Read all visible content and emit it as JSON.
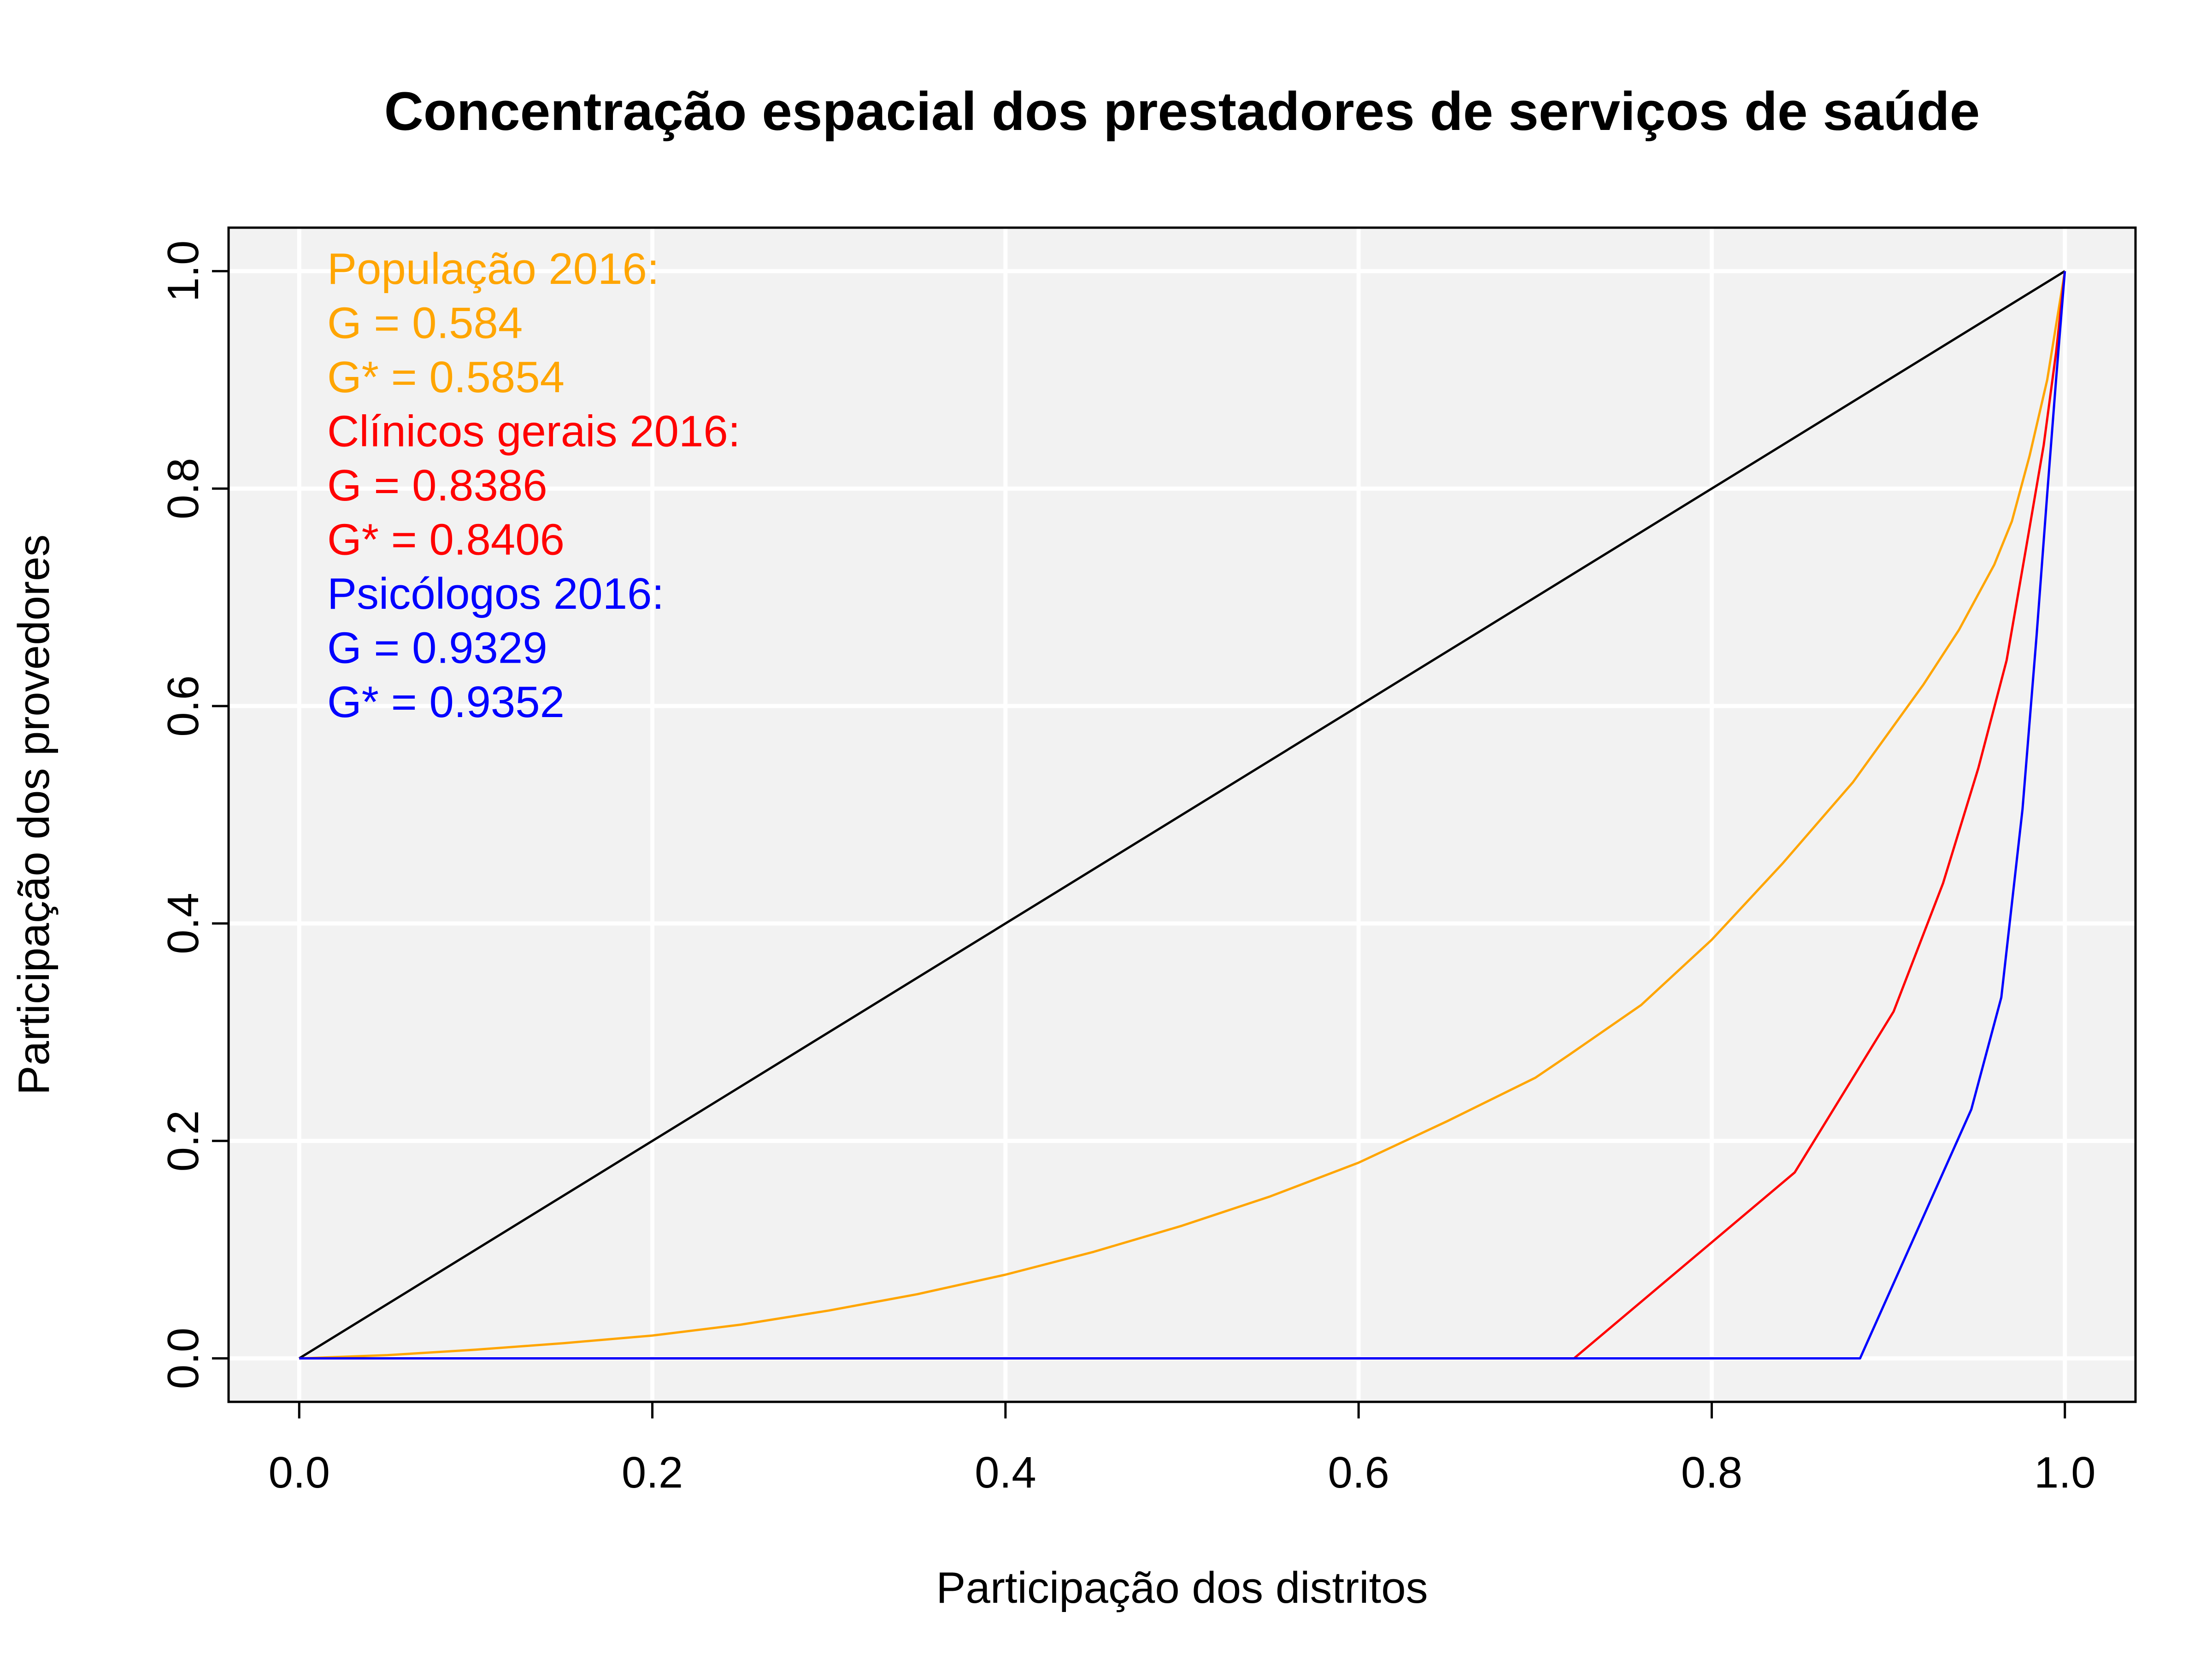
{
  "chart_data": {
    "type": "line",
    "title": "Concentração espacial dos prestadores de serviços de saúde",
    "xlabel": "Participação dos distritos",
    "ylabel": "Participação dos provedores",
    "xlim": [
      -0.04,
      1.04
    ],
    "ylim": [
      -0.04,
      1.04
    ],
    "x_ticks": [
      0.0,
      0.2,
      0.4,
      0.6,
      0.8,
      1.0
    ],
    "y_ticks": [
      0.0,
      0.2,
      0.4,
      0.6,
      0.8,
      1.0
    ],
    "x_tick_labels": [
      "0.0",
      "0.2",
      "0.4",
      "0.6",
      "0.8",
      "1.0"
    ],
    "y_tick_labels": [
      "0.0",
      "0.2",
      "0.4",
      "0.6",
      "0.8",
      "1.0"
    ],
    "grid": true,
    "panel_background": "#f2f2f2",
    "annotations": [
      {
        "text": "População 2016:",
        "color": "#ffa500"
      },
      {
        "text": "G = 0.584",
        "color": "#ffa500"
      },
      {
        "text": "G* = 0.5854",
        "color": "#ffa500"
      },
      {
        "text": "Clínicos gerais 2016:",
        "color": "#ff0000"
      },
      {
        "text": "G = 0.8386",
        "color": "#ff0000"
      },
      {
        "text": "G* = 0.8406",
        "color": "#ff0000"
      },
      {
        "text": "Psicólogos 2016:",
        "color": "#0000ff"
      },
      {
        "text": "G = 0.9329",
        "color": "#0000ff"
      },
      {
        "text": "G* = 0.9352",
        "color": "#0000ff"
      }
    ],
    "series": [
      {
        "color": "#000000",
        "x": [
          0.0,
          1.0
        ],
        "y": [
          0.0,
          1.0
        ]
      },
      {
        "color": "#ffa500",
        "x": [
          0.0,
          0.05,
          0.1,
          0.15,
          0.2,
          0.25,
          0.3,
          0.35,
          0.4,
          0.45,
          0.5,
          0.55,
          0.6,
          0.65,
          0.7,
          0.72,
          0.76,
          0.8,
          0.84,
          0.88,
          0.9,
          0.92,
          0.94,
          0.96,
          0.97,
          0.98,
          0.99,
          1.0
        ],
        "y": [
          0.0,
          0.003,
          0.008,
          0.014,
          0.021,
          0.031,
          0.044,
          0.059,
          0.077,
          0.098,
          0.122,
          0.149,
          0.18,
          0.218,
          0.258,
          0.28,
          0.325,
          0.385,
          0.455,
          0.53,
          0.575,
          0.62,
          0.67,
          0.73,
          0.77,
          0.83,
          0.9,
          1.0
        ]
      },
      {
        "color": "#ff0000",
        "x": [
          0.0,
          0.722,
          0.847,
          0.903,
          0.931,
          0.951,
          0.967,
          0.978,
          0.988,
          0.995,
          1.0
        ],
        "y": [
          0.0,
          0.0,
          0.171,
          0.319,
          0.437,
          0.543,
          0.642,
          0.745,
          0.84,
          0.925,
          1.0
        ]
      },
      {
        "color": "#0000ff",
        "x": [
          0.0,
          0.884,
          0.947,
          0.964,
          0.976,
          0.984,
          0.99,
          0.995,
          1.0
        ],
        "y": [
          0.0,
          0.0,
          0.229,
          0.332,
          0.505,
          0.665,
          0.795,
          0.9,
          1.0
        ]
      }
    ]
  }
}
